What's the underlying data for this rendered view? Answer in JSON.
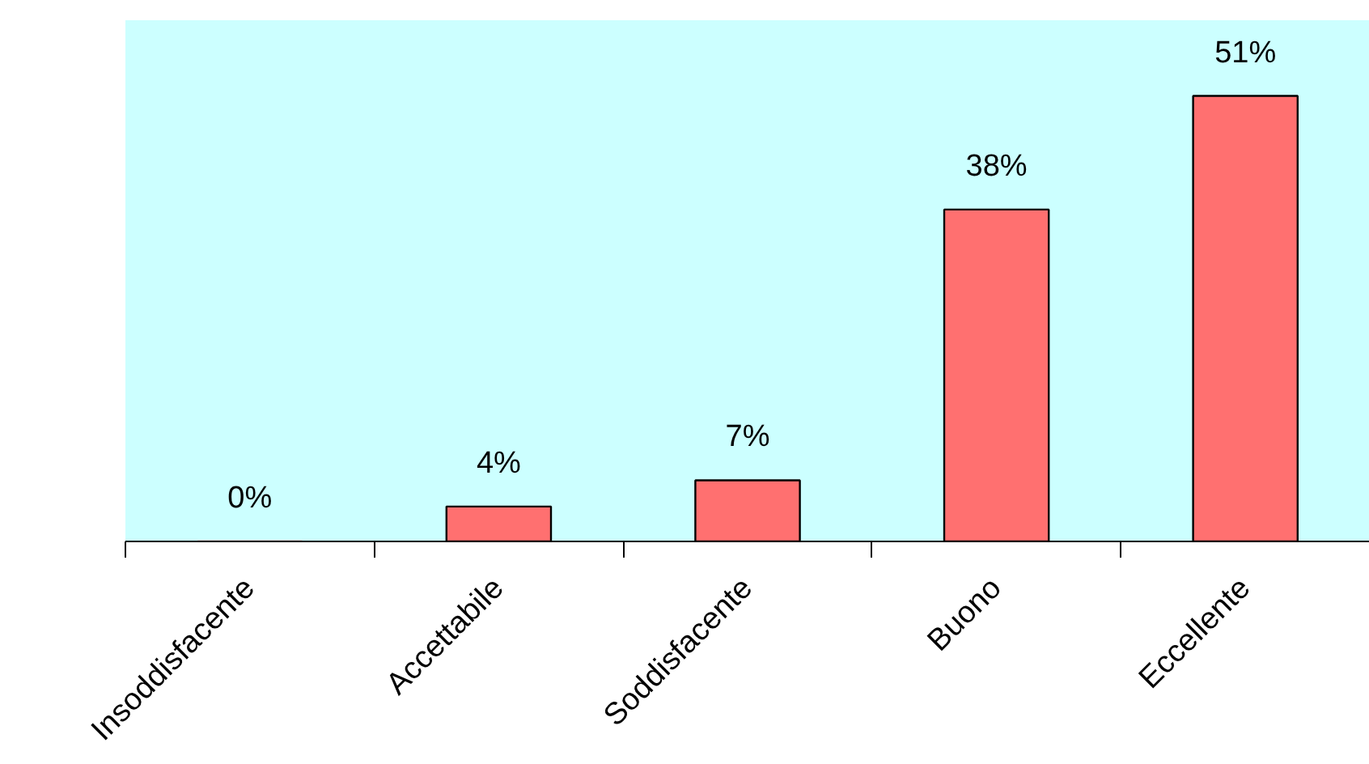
{
  "chart_data": {
    "type": "bar",
    "categories": [
      "Insoddisfacente",
      "Accettabile",
      "Soddisfacente",
      "Buono",
      "Eccellente"
    ],
    "values": [
      0,
      4,
      7,
      38,
      51
    ],
    "value_labels": [
      "0%",
      "4%",
      "7%",
      "38%",
      "51%"
    ],
    "color": "#ff7070"
  }
}
